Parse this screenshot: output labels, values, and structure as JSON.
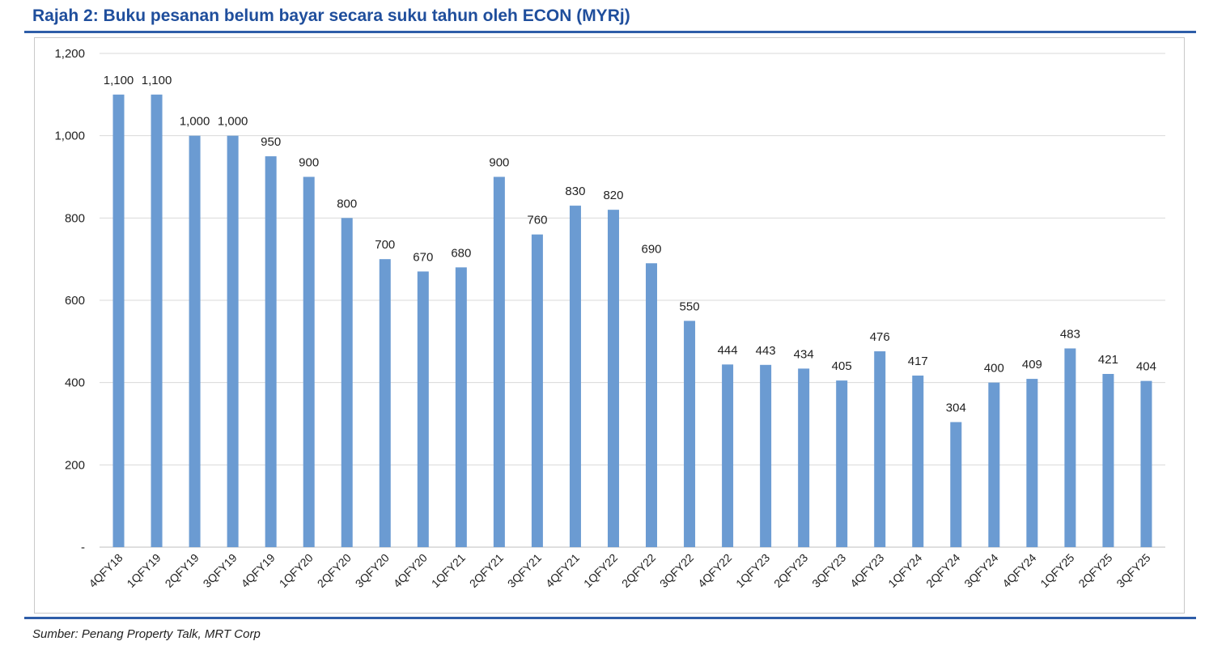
{
  "title": "Rajah 2: Buku pesanan belum bayar secara suku tahun oleh ECON (MYRj)",
  "source": "Sumber: Penang Property Talk, MRT Corp",
  "colors": {
    "bar": "#6b9bd2",
    "rule": "#2e5da8",
    "title": "#1f4e9c",
    "grid": "#d9d9d9"
  },
  "chart_data": {
    "type": "bar",
    "title": "Rajah 2: Buku pesanan belum bayar secara suku tahun oleh ECON (MYRj)",
    "xlabel": "",
    "ylabel": "",
    "ylim": [
      0,
      1200
    ],
    "yticks": [
      0,
      200,
      400,
      600,
      800,
      1000,
      1200
    ],
    "ytick_labels": [
      "-",
      "200",
      "400",
      "600",
      "800",
      "1,000",
      "1,200"
    ],
    "grid": true,
    "categories": [
      "4QFY18",
      "1QFY19",
      "2QFY19",
      "3QFY19",
      "4QFY19",
      "1QFY20",
      "2QFY20",
      "3QFY20",
      "4QFY20",
      "1QFY21",
      "2QFY21",
      "3QFY21",
      "4QFY21",
      "1QFY22",
      "2QFY22",
      "3QFY22",
      "4QFY22",
      "1QFY23",
      "2QFY23",
      "3QFY23",
      "4QFY23",
      "1QFY24",
      "2QFY24",
      "3QFY24",
      "4QFY24",
      "1QFY25",
      "2QFY25",
      "3QFY25"
    ],
    "values": [
      1100,
      1100,
      1000,
      1000,
      950,
      900,
      800,
      700,
      670,
      680,
      900,
      760,
      830,
      820,
      690,
      550,
      444,
      443,
      434,
      405,
      476,
      417,
      304,
      400,
      409,
      483,
      421,
      404
    ],
    "value_labels": [
      "1,100",
      "1,100",
      "1,000",
      "1,000",
      "950",
      "900",
      "800",
      "700",
      "670",
      "680",
      "900",
      "760",
      "830",
      "820",
      "690",
      "550",
      "444",
      "443",
      "434",
      "405",
      "476",
      "417",
      "304",
      "400",
      "409",
      "483",
      "421",
      "404"
    ]
  }
}
